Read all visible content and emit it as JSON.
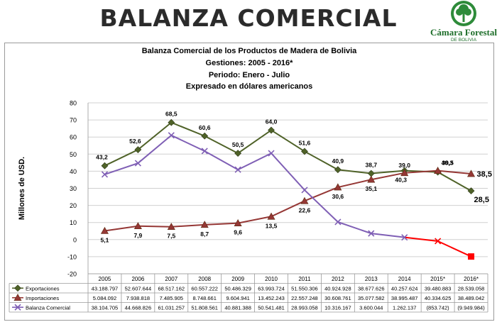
{
  "header": {
    "title": "BALANZA COMERCIAL",
    "logo_name": "Cámara Forestal",
    "logo_sub": "DE BOLIVIA",
    "logo_color": "#1e6e2a"
  },
  "chart_data": {
    "type": "line",
    "title_lines": [
      "Balanza Comercial de los Productos de Madera de Bolivia",
      "Gestiones: 2005 - 2016*",
      "Periodo: Enero - Julio",
      "Expresado en dólares americanos"
    ],
    "xlabel": "",
    "ylabel": "Millones de USD.",
    "ylim": [
      -20,
      80
    ],
    "yticks": [
      "80",
      "70",
      "60",
      "50",
      "40",
      "30",
      "20",
      "10",
      "0",
      "-10",
      "-20"
    ],
    "grid": true,
    "categories": [
      "2005",
      "2006",
      "2007",
      "2008",
      "2009",
      "2010",
      "2011",
      "2012",
      "2013",
      "2014",
      "2015*",
      "2016*"
    ],
    "series": [
      {
        "name": "Exportaciones",
        "color": "#4f6228",
        "marker": "diamond",
        "values": [
          43.2,
          52.6,
          68.5,
          60.6,
          50.5,
          64.0,
          51.6,
          40.9,
          38.7,
          40.3,
          39.5,
          28.5
        ],
        "labels": [
          "43,2",
          "52,6",
          "68,5",
          "60,6",
          "50,5",
          "64,0",
          "51,6",
          "40,9",
          "38,7",
          "40,3",
          "39,5",
          "28,5"
        ],
        "table": [
          "43.188.797",
          "52.607.644",
          "68.517.162",
          "60.557.222",
          "50.486.329",
          "63.993.724",
          "51.550.306",
          "40.924.928",
          "38.677.626",
          "40.257.624",
          "39.480.883",
          "28.539.058"
        ]
      },
      {
        "name": "Importaciones",
        "color": "#953735",
        "marker": "triangle",
        "values": [
          5.1,
          7.9,
          7.5,
          8.7,
          9.6,
          13.5,
          22.6,
          30.6,
          35.1,
          39.0,
          40.3,
          38.5
        ],
        "labels": [
          "5,1",
          "7,9",
          "7,5",
          "8,7",
          "9,6",
          "13,5",
          "22,6",
          "30,6",
          "35,1",
          "39,0",
          "40,3",
          "38,5"
        ],
        "table": [
          "5.084.092",
          "7.938.818",
          "7.485.905",
          "8.748.661",
          "9.604.941",
          "13.452.243",
          "22.557.248",
          "30.608.761",
          "35.077.582",
          "38.995.487",
          "40.334.625",
          "38.489.042"
        ]
      },
      {
        "name": "Balanza Comercial",
        "color": "#7f5fb5",
        "negative_color": "#ff0000",
        "marker": "x",
        "values": [
          38.1,
          44.7,
          61.0,
          51.8,
          40.9,
          50.5,
          29.0,
          10.3,
          3.6,
          1.3,
          -0.9,
          -9.9
        ],
        "table": [
          "38.104.705",
          "44.668.826",
          "61.031.257",
          "51.808.561",
          "40.881.388",
          "50.541.481",
          "28.993.058",
          "10.316.167",
          "3.600.044",
          "1.262.137",
          "(853.742)",
          "(9.949.984)"
        ]
      }
    ]
  }
}
